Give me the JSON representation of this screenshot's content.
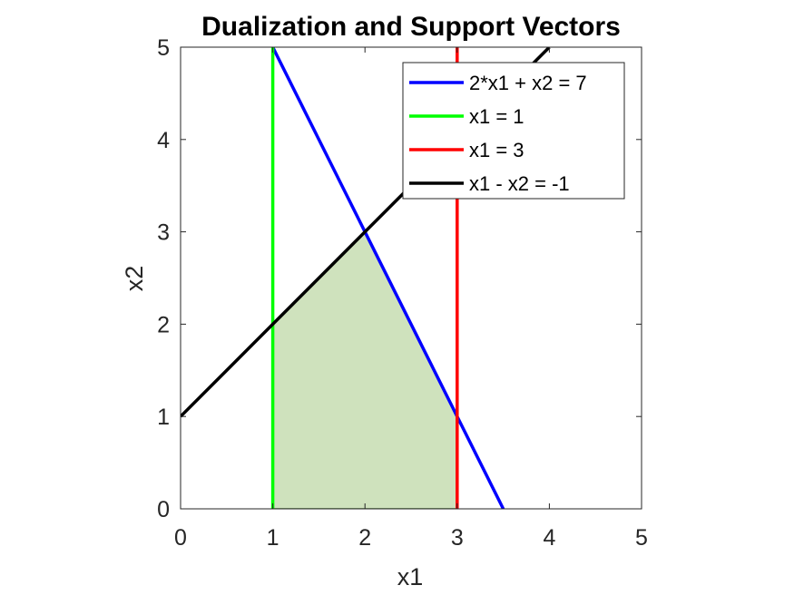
{
  "chart_data": {
    "type": "line",
    "title": "Dualization and Support Vectors",
    "xlabel": "x1",
    "ylabel": "x2",
    "xlim": [
      0,
      5
    ],
    "ylim": [
      0,
      5
    ],
    "xticks": [
      0,
      1,
      2,
      3,
      4,
      5
    ],
    "yticks": [
      0,
      1,
      2,
      3,
      4,
      5
    ],
    "grid": false,
    "box": true,
    "legend_position": "top-right",
    "series": [
      {
        "name": "2*x1 + x2 = 7",
        "color": "#0000ff",
        "x": [
          1,
          3.5
        ],
        "y": [
          5,
          0
        ]
      },
      {
        "name": "x1 = 1",
        "color": "#00ff00",
        "x": [
          1,
          1
        ],
        "y": [
          0,
          5
        ]
      },
      {
        "name": "x1 = 3",
        "color": "#ff0000",
        "x": [
          3,
          3
        ],
        "y": [
          0,
          5
        ]
      },
      {
        "name": "x1 - x2 = -1",
        "color": "#000000",
        "x": [
          0,
          4
        ],
        "y": [
          1,
          5
        ]
      }
    ],
    "feasible_region": {
      "color": "#cfe2bd",
      "edge_color": "#4d7a3a",
      "points": [
        [
          1,
          0
        ],
        [
          3,
          0
        ],
        [
          3,
          1
        ],
        [
          2,
          3
        ],
        [
          1,
          2
        ]
      ]
    }
  }
}
